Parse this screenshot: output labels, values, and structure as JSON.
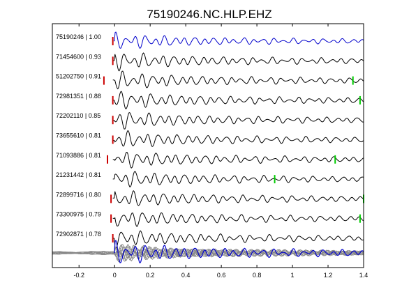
{
  "chart_data": {
    "type": "line",
    "title": "75190246.NC.HLP.EHZ",
    "xlim": [
      -0.35,
      1.4
    ],
    "xticks": [
      "-0.2",
      "0",
      "0.2",
      "0.4",
      "0.6",
      "0.8",
      "1",
      "1.2",
      "1.4"
    ],
    "xtick_values": [
      -0.2,
      0,
      0.2,
      0.4,
      0.6,
      0.8,
      1.0,
      1.2,
      1.4
    ],
    "grid": false,
    "traces": [
      {
        "label": "75190246 | 1.00",
        "color": "#0000cc",
        "p_pick": -0.01,
        "s_pick": null
      },
      {
        "label": "71454600 | 0.93",
        "color": "#000000",
        "p_pick": -0.01,
        "s_pick": null
      },
      {
        "label": "51202750 | 0.91",
        "color": "#000000",
        "p_pick": -0.06,
        "s_pick": 1.34
      },
      {
        "label": "72981351 | 0.88",
        "color": "#000000",
        "p_pick": -0.01,
        "s_pick": 1.38
      },
      {
        "label": "72202110 | 0.85",
        "color": "#000000",
        "p_pick": -0.01,
        "s_pick": null
      },
      {
        "label": "73655610 | 0.81",
        "color": "#000000",
        "p_pick": -0.01,
        "s_pick": null
      },
      {
        "label": "71093886 | 0.81",
        "color": "#000000",
        "p_pick": -0.04,
        "s_pick": 1.24
      },
      {
        "label": "21231442 | 0.81",
        "color": "#000000",
        "p_pick": null,
        "s_pick": 0.9
      },
      {
        "label": "72899716 | 0.80",
        "color": "#000000",
        "p_pick": -0.02,
        "s_pick": 1.4
      },
      {
        "label": "73300975 | 0.79",
        "color": "#000000",
        "p_pick": -0.02,
        "s_pick": 1.38
      },
      {
        "label": "72902871 | 0.78",
        "color": "#000000",
        "p_pick": -0.01,
        "s_pick": null
      }
    ],
    "stack": {
      "colors": [
        "#888888",
        "#0000cc"
      ]
    },
    "pick_colors": {
      "p": "#cc0000",
      "s": "#00cc00"
    }
  }
}
